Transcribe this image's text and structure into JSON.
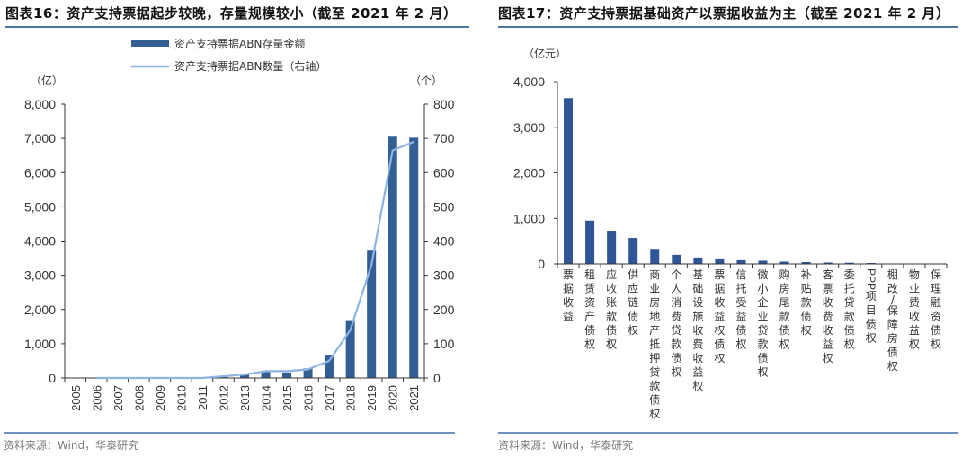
{
  "left": {
    "title": "图表16：资产支持票据起步较晚，存量规模较小（截至 2021 年 2 月）",
    "source": "资料来源：Wind，华泰研究",
    "left_unit": "（亿）",
    "right_unit": "（个）",
    "legend": [
      {
        "label": "资产支持票据ABN存量金额",
        "type": "bar",
        "color": "#335f94"
      },
      {
        "label": "资产支持票据ABN数量（右轴）",
        "type": "line",
        "color": "#8db4e2"
      }
    ]
  },
  "right": {
    "title": "图表17：资产支持票据基础资产以票据收益为主（截至 2021 年 2 月）",
    "source": "资料来源：Wind，华泰研究",
    "unit": "（亿元）"
  },
  "colors": {
    "bar": "#335f94",
    "bar_right": "#2f5597",
    "line": "#8db4e2",
    "rule": "#4a73a8",
    "axis": "#333333"
  },
  "chart_data": [
    {
      "type": "bar+line",
      "title": "图表16：资产支持票据起步较晚，存量规模较小（截至 2021 年 2 月）",
      "categories": [
        "2005",
        "2006",
        "2007",
        "2008",
        "2009",
        "2010",
        "2011",
        "2012",
        "2013",
        "2014",
        "2015",
        "2016",
        "2017",
        "2018",
        "2019",
        "2020",
        "2021"
      ],
      "series": [
        {
          "name": "资产支持票据ABN存量金额",
          "type": "bar",
          "axis": "left",
          "values": [
            0,
            0,
            0,
            0,
            0,
            0,
            0,
            30,
            100,
            170,
            160,
            280,
            680,
            1690,
            3720,
            7050,
            7020
          ]
        },
        {
          "name": "资产支持票据ABN数量（右轴）",
          "type": "line",
          "axis": "right",
          "values": [
            null,
            0,
            0,
            0,
            0,
            0,
            0,
            5,
            10,
            20,
            20,
            25,
            50,
            140,
            330,
            665,
            690
          ]
        }
      ],
      "ylabel": "（亿）",
      "ylabel_right": "（个）",
      "ylim": [
        0,
        8000
      ],
      "yticks": [
        "0",
        "1,000",
        "2,000",
        "3,000",
        "4,000",
        "5,000",
        "6,000",
        "7,000",
        "8,000"
      ],
      "ylim_right": [
        0,
        800
      ],
      "yticks_right": [
        "0",
        "100",
        "200",
        "300",
        "400",
        "500",
        "600",
        "700",
        "800"
      ],
      "legend_position": "top",
      "grid": false
    },
    {
      "type": "bar",
      "title": "图表17：资产支持票据基础资产以票据收益为主（截至 2021 年 2 月）",
      "categories": [
        "票据收益",
        "租赁资产债权",
        "应收账款债权",
        "供应链债权",
        "商业房地产抵押贷款债权",
        "个人消费贷款债权",
        "基础设施收费收益权",
        "票据收益权债权",
        "信托受益债权",
        "微小企业贷款债权",
        "购房尾款债权",
        "补贴款债权",
        "客票收费收益权",
        "委托贷款债权",
        "PPP项目债权",
        "棚改/保障房债权",
        "物业费收益权",
        "保理融资债权"
      ],
      "values": [
        3640,
        950,
        730,
        570,
        330,
        200,
        140,
        120,
        80,
        70,
        50,
        40,
        30,
        25,
        20,
        5,
        3,
        2
      ],
      "ylabel": "（亿元）",
      "ylim": [
        0,
        4000
      ],
      "yticks": [
        "0",
        "1,000",
        "2,000",
        "3,000",
        "4,000"
      ],
      "grid": false
    }
  ]
}
